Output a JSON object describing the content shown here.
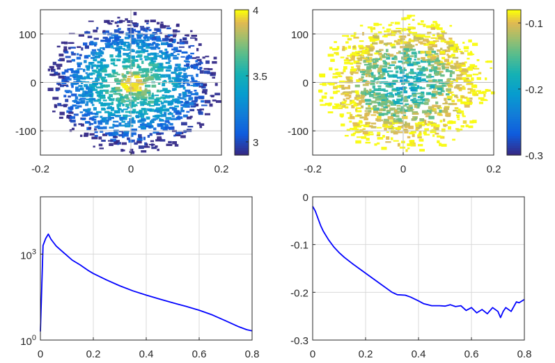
{
  "colors": {
    "axis": "#262626",
    "grid": "#d9d9d9",
    "line": "#0000ff",
    "background": "#ffffff"
  },
  "chart_data": [
    {
      "type": "heatmap",
      "colormap": "parula",
      "xlim": [
        -0.2,
        0.2
      ],
      "ylim": [
        -150,
        150
      ],
      "xticks": [
        -0.2,
        0,
        0.2
      ],
      "xtick_labels": [
        "-0.2",
        "0",
        "0.2"
      ],
      "yticks": [
        -100,
        0,
        100
      ],
      "ytick_labels": [
        "-100",
        "0",
        "100"
      ],
      "grid": true,
      "distribution": "noisy 2-D blob centred at (0, 0), values increasing toward the centre",
      "colorbar": {
        "range": [
          2.9,
          4.0
        ],
        "ticks": [
          3,
          3.5,
          4
        ],
        "tick_labels": [
          "3",
          "3.5",
          "4"
        ]
      }
    },
    {
      "type": "heatmap",
      "colormap": "parula",
      "xlim": [
        -0.2,
        0.2
      ],
      "ylim": [
        -150,
        150
      ],
      "xticks": [
        -0.2,
        0,
        0.2
      ],
      "xtick_labels": [
        "-0.2",
        "0",
        "0.2"
      ],
      "yticks": [
        -100,
        0,
        100
      ],
      "ytick_labels": [
        "-100",
        "0",
        "100"
      ],
      "grid": true,
      "distribution": "noisy 2-D blob centred at (0, 0), lower (blue/green) values toward the centre, yellow at the rim",
      "colorbar": {
        "range": [
          -0.3,
          -0.08
        ],
        "ticks": [
          -0.3,
          -0.2,
          -0.1
        ],
        "tick_labels": [
          "-0.3",
          "-0.2",
          "-0.1"
        ]
      }
    },
    {
      "type": "line",
      "yscale": "log",
      "xlim": [
        0,
        0.8
      ],
      "ylim": [
        1,
        100000
      ],
      "xticks": [
        0,
        0.2,
        0.4,
        0.6,
        0.8
      ],
      "xtick_labels": [
        "0",
        "0.2",
        "0.4",
        "0.6",
        "0.8"
      ],
      "yticks": [
        1,
        1000
      ],
      "ytick_labels": [
        {
          "base": "10",
          "exp": "0"
        },
        {
          "base": "10",
          "exp": "3"
        }
      ],
      "grid": true,
      "series": [
        {
          "name": "",
          "color": "#0000ff",
          "x": [
            0,
            0.01,
            0.02,
            0.03,
            0.04,
            0.05,
            0.06,
            0.08,
            0.1,
            0.12,
            0.15,
            0.18,
            0.2,
            0.25,
            0.3,
            0.35,
            0.4,
            0.45,
            0.5,
            0.55,
            0.6,
            0.65,
            0.7,
            0.75,
            0.78,
            0.8
          ],
          "y": [
            2,
            2000,
            3500,
            5000,
            3300,
            2500,
            1900,
            1300,
            900,
            620,
            420,
            270,
            210,
            125,
            78,
            52,
            37,
            27,
            20,
            15,
            11,
            7.5,
            4.7,
            2.9,
            2.3,
            2.1
          ]
        }
      ]
    },
    {
      "type": "line",
      "xlim": [
        0,
        0.8
      ],
      "ylim": [
        -0.3,
        0
      ],
      "xticks": [
        0,
        0.2,
        0.4,
        0.6,
        0.8
      ],
      "xtick_labels": [
        "0",
        "0.2",
        "0.4",
        "0.6",
        "0.8"
      ],
      "yticks": [
        -0.3,
        -0.2,
        -0.1,
        0
      ],
      "ytick_labels": [
        "-0.3",
        "-0.2",
        "-0.1",
        "0"
      ],
      "grid": true,
      "series": [
        {
          "name": "",
          "color": "#0000ff",
          "x": [
            0,
            0.01,
            0.02,
            0.03,
            0.04,
            0.06,
            0.08,
            0.1,
            0.12,
            0.15,
            0.18,
            0.2,
            0.25,
            0.3,
            0.32,
            0.35,
            0.37,
            0.4,
            0.42,
            0.45,
            0.48,
            0.5,
            0.52,
            0.54,
            0.56,
            0.58,
            0.6,
            0.62,
            0.64,
            0.66,
            0.68,
            0.7,
            0.71,
            0.72,
            0.73,
            0.75,
            0.77,
            0.78,
            0.8
          ],
          "y": [
            -0.02,
            -0.03,
            -0.045,
            -0.06,
            -0.072,
            -0.09,
            -0.105,
            -0.117,
            -0.127,
            -0.14,
            -0.152,
            -0.16,
            -0.18,
            -0.2,
            -0.205,
            -0.206,
            -0.21,
            -0.218,
            -0.224,
            -0.228,
            -0.228,
            -0.229,
            -0.226,
            -0.23,
            -0.228,
            -0.238,
            -0.232,
            -0.243,
            -0.236,
            -0.245,
            -0.232,
            -0.24,
            -0.253,
            -0.24,
            -0.232,
            -0.24,
            -0.22,
            -0.222,
            -0.215
          ]
        }
      ]
    }
  ]
}
